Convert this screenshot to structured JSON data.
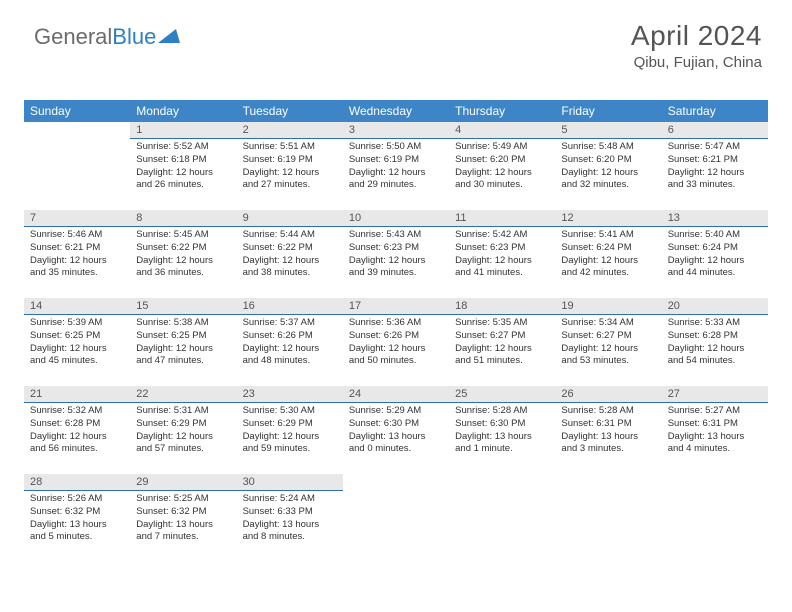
{
  "logo": {
    "text1": "General",
    "text2": "Blue"
  },
  "title": {
    "month": "April 2024",
    "location": "Qibu, Fujian, China"
  },
  "weekdays": [
    "Sunday",
    "Monday",
    "Tuesday",
    "Wednesday",
    "Thursday",
    "Friday",
    "Saturday"
  ],
  "colors": {
    "header_bg": "#3d85c6",
    "daynum_bg": "#e8e8e8",
    "daynum_border": "#2f6fa8"
  },
  "startOffset": 1,
  "days": [
    {
      "n": 1,
      "sunrise": "5:52 AM",
      "sunset": "6:18 PM",
      "daylight": "12 hours and 26 minutes."
    },
    {
      "n": 2,
      "sunrise": "5:51 AM",
      "sunset": "6:19 PM",
      "daylight": "12 hours and 27 minutes."
    },
    {
      "n": 3,
      "sunrise": "5:50 AM",
      "sunset": "6:19 PM",
      "daylight": "12 hours and 29 minutes."
    },
    {
      "n": 4,
      "sunrise": "5:49 AM",
      "sunset": "6:20 PM",
      "daylight": "12 hours and 30 minutes."
    },
    {
      "n": 5,
      "sunrise": "5:48 AM",
      "sunset": "6:20 PM",
      "daylight": "12 hours and 32 minutes."
    },
    {
      "n": 6,
      "sunrise": "5:47 AM",
      "sunset": "6:21 PM",
      "daylight": "12 hours and 33 minutes."
    },
    {
      "n": 7,
      "sunrise": "5:46 AM",
      "sunset": "6:21 PM",
      "daylight": "12 hours and 35 minutes."
    },
    {
      "n": 8,
      "sunrise": "5:45 AM",
      "sunset": "6:22 PM",
      "daylight": "12 hours and 36 minutes."
    },
    {
      "n": 9,
      "sunrise": "5:44 AM",
      "sunset": "6:22 PM",
      "daylight": "12 hours and 38 minutes."
    },
    {
      "n": 10,
      "sunrise": "5:43 AM",
      "sunset": "6:23 PM",
      "daylight": "12 hours and 39 minutes."
    },
    {
      "n": 11,
      "sunrise": "5:42 AM",
      "sunset": "6:23 PM",
      "daylight": "12 hours and 41 minutes."
    },
    {
      "n": 12,
      "sunrise": "5:41 AM",
      "sunset": "6:24 PM",
      "daylight": "12 hours and 42 minutes."
    },
    {
      "n": 13,
      "sunrise": "5:40 AM",
      "sunset": "6:24 PM",
      "daylight": "12 hours and 44 minutes."
    },
    {
      "n": 14,
      "sunrise": "5:39 AM",
      "sunset": "6:25 PM",
      "daylight": "12 hours and 45 minutes."
    },
    {
      "n": 15,
      "sunrise": "5:38 AM",
      "sunset": "6:25 PM",
      "daylight": "12 hours and 47 minutes."
    },
    {
      "n": 16,
      "sunrise": "5:37 AM",
      "sunset": "6:26 PM",
      "daylight": "12 hours and 48 minutes."
    },
    {
      "n": 17,
      "sunrise": "5:36 AM",
      "sunset": "6:26 PM",
      "daylight": "12 hours and 50 minutes."
    },
    {
      "n": 18,
      "sunrise": "5:35 AM",
      "sunset": "6:27 PM",
      "daylight": "12 hours and 51 minutes."
    },
    {
      "n": 19,
      "sunrise": "5:34 AM",
      "sunset": "6:27 PM",
      "daylight": "12 hours and 53 minutes."
    },
    {
      "n": 20,
      "sunrise": "5:33 AM",
      "sunset": "6:28 PM",
      "daylight": "12 hours and 54 minutes."
    },
    {
      "n": 21,
      "sunrise": "5:32 AM",
      "sunset": "6:28 PM",
      "daylight": "12 hours and 56 minutes."
    },
    {
      "n": 22,
      "sunrise": "5:31 AM",
      "sunset": "6:29 PM",
      "daylight": "12 hours and 57 minutes."
    },
    {
      "n": 23,
      "sunrise": "5:30 AM",
      "sunset": "6:29 PM",
      "daylight": "12 hours and 59 minutes."
    },
    {
      "n": 24,
      "sunrise": "5:29 AM",
      "sunset": "6:30 PM",
      "daylight": "13 hours and 0 minutes."
    },
    {
      "n": 25,
      "sunrise": "5:28 AM",
      "sunset": "6:30 PM",
      "daylight": "13 hours and 1 minute."
    },
    {
      "n": 26,
      "sunrise": "5:28 AM",
      "sunset": "6:31 PM",
      "daylight": "13 hours and 3 minutes."
    },
    {
      "n": 27,
      "sunrise": "5:27 AM",
      "sunset": "6:31 PM",
      "daylight": "13 hours and 4 minutes."
    },
    {
      "n": 28,
      "sunrise": "5:26 AM",
      "sunset": "6:32 PM",
      "daylight": "13 hours and 5 minutes."
    },
    {
      "n": 29,
      "sunrise": "5:25 AM",
      "sunset": "6:32 PM",
      "daylight": "13 hours and 7 minutes."
    },
    {
      "n": 30,
      "sunrise": "5:24 AM",
      "sunset": "6:33 PM",
      "daylight": "13 hours and 8 minutes."
    }
  ],
  "labels": {
    "sunrise": "Sunrise:",
    "sunset": "Sunset:",
    "daylight": "Daylight:"
  }
}
